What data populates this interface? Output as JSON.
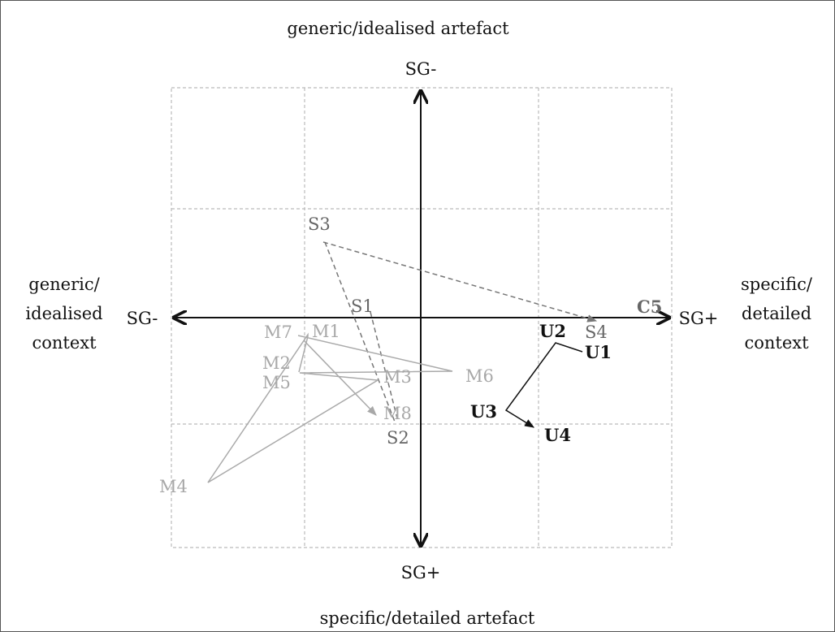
{
  "axis_titles": {
    "top": "generic/idealised artefact",
    "bottom": "specific/detailed artefact",
    "left": [
      "generic/",
      "idealised",
      "context"
    ],
    "right": [
      "specific/",
      "detailed",
      "context"
    ]
  },
  "axis_ends": {
    "top": "SG-",
    "bottom": "SG+",
    "left": "SG-",
    "right": "SG+"
  },
  "groups": {
    "S": {
      "color": "#666666",
      "line_style": "dashed",
      "points": [
        {
          "id": "S3",
          "label": "S3"
        },
        {
          "id": "S1",
          "label": "S1"
        },
        {
          "id": "S2",
          "label": "S2"
        },
        {
          "id": "S4",
          "label": "S4"
        },
        {
          "id": "C5",
          "label": "C5"
        }
      ]
    },
    "M": {
      "color": "#a8a8a8",
      "line_style": "solid",
      "points": [
        {
          "id": "M1",
          "label": "M1"
        },
        {
          "id": "M2",
          "label": "M2"
        },
        {
          "id": "M3",
          "label": "M3"
        },
        {
          "id": "M4",
          "label": "M4"
        },
        {
          "id": "M5",
          "label": "M5"
        },
        {
          "id": "M6",
          "label": "M6"
        },
        {
          "id": "M7",
          "label": "M7"
        },
        {
          "id": "M8",
          "label": "M8"
        }
      ]
    },
    "U": {
      "color": "#111111",
      "line_style": "solid",
      "points": [
        {
          "id": "U1",
          "label": "U1"
        },
        {
          "id": "U2",
          "label": "U2"
        },
        {
          "id": "U3",
          "label": "U3"
        },
        {
          "id": "U4",
          "label": "U4"
        }
      ]
    }
  }
}
